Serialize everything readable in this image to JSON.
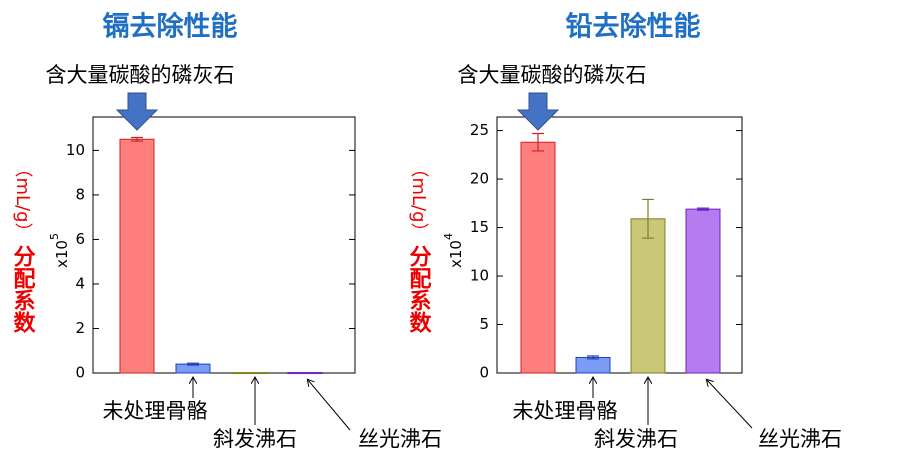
{
  "chart_data": [
    {
      "type": "bar",
      "title": "镉去除性能",
      "annotation": "含大量碳酸的磷灰石",
      "ylabel": "分配系数",
      "ylabel_unit": "（mL/g）",
      "multiplier": {
        "base": "x10",
        "exponent": "5"
      },
      "categories": [
        "含大量碳酸的磷灰石",
        "未处理骨骼",
        "斜发沸石",
        "丝光沸石"
      ],
      "values": [
        10.5,
        0.4,
        0.02,
        0.02
      ],
      "errors": [
        0.08,
        0.04,
        0,
        0
      ],
      "colors": [
        "#ff7f7f",
        "#7b9cf5",
        "#c8c878",
        "#b47cf0"
      ],
      "ylim": [
        0,
        11.5
      ],
      "yticks": [
        0,
        2,
        4,
        6,
        8,
        10
      ]
    },
    {
      "type": "bar",
      "title": "铅去除性能",
      "annotation": "含大量碳酸的磷灰石",
      "ylabel": "分配系数",
      "ylabel_unit": "（mL/g）",
      "multiplier": {
        "base": "x10",
        "exponent": "4"
      },
      "categories": [
        "含大量碳酸的磷灰石",
        "未处理骨骼",
        "斜发沸石",
        "丝光沸石"
      ],
      "values": [
        23.8,
        1.6,
        15.9,
        16.9
      ],
      "errors": [
        0.9,
        0.15,
        2.0,
        0.1
      ],
      "colors": [
        "#ff7f7f",
        "#7b9cf5",
        "#c8c878",
        "#b47cf0"
      ],
      "ylim": [
        0,
        26.4
      ],
      "yticks": [
        0,
        5,
        10,
        15,
        20,
        25
      ]
    }
  ]
}
